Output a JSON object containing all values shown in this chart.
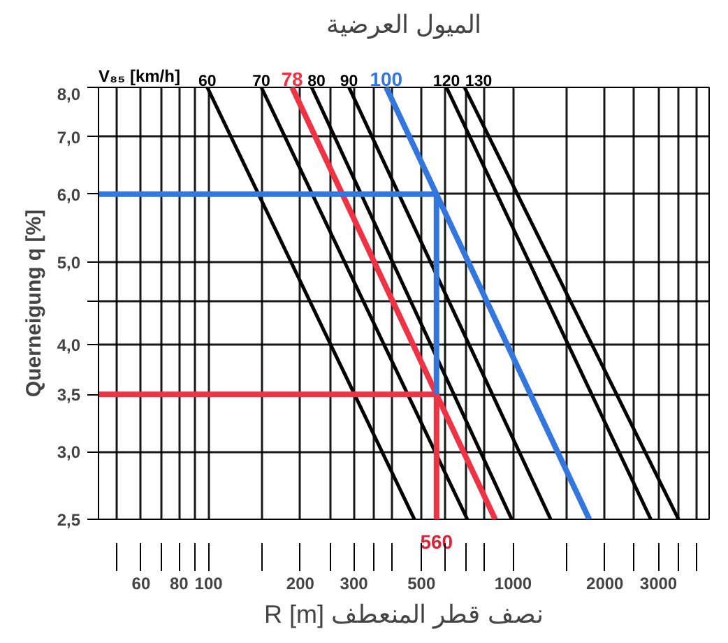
{
  "chart_data": {
    "type": "line",
    "title": "الميول العرضية",
    "xlabel": "R [m] نصف قطر المنعطف",
    "ylabel": "Querneigung q [%]",
    "annotations": [
      "V₈₅ [km/h]",
      {
        "text": "560",
        "x": 560,
        "y": 2.5
      }
    ],
    "log": "xy",
    "grid": true,
    "line_style": "solid",
    "marker": "none",
    "xlim": [
      43.5,
      4400
    ],
    "ylim": [
      2.5,
      8.0
    ],
    "xticks": [
      {
        "value": 50,
        "label": null
      },
      {
        "value": 60,
        "label": "60"
      },
      {
        "value": 70,
        "label": null
      },
      {
        "value": 80,
        "label": "80"
      },
      {
        "value": 90,
        "label": null
      },
      {
        "value": 100,
        "label": "100"
      },
      {
        "value": 150,
        "label": null
      },
      {
        "value": 200,
        "label": "200"
      },
      {
        "value": 250,
        "label": null
      },
      {
        "value": 300,
        "label": "300"
      },
      {
        "value": 350,
        "label": null
      },
      {
        "value": 400,
        "label": null
      },
      {
        "value": 500,
        "label": "500"
      },
      {
        "value": 600,
        "label": null
      },
      {
        "value": 700,
        "label": null
      },
      {
        "value": 800,
        "label": null
      },
      {
        "value": 1000,
        "label": "1000"
      },
      {
        "value": 1500,
        "label": null
      },
      {
        "value": 2000,
        "label": "2000"
      },
      {
        "value": 2500,
        "label": null
      },
      {
        "value": 3000,
        "label": "3000"
      },
      {
        "value": 3500,
        "label": null
      },
      {
        "value": 4000,
        "label": null
      }
    ],
    "yticks": [
      {
        "value": 2.5,
        "label": "2,5"
      },
      {
        "value": 3.0,
        "label": "3,0"
      },
      {
        "value": 3.5,
        "label": "3,5"
      },
      {
        "value": 4.0,
        "label": "4,0"
      },
      {
        "value": 4.5,
        "label": null
      },
      {
        "value": 5.0,
        "label": "5,0"
      },
      {
        "value": 6.0,
        "label": "6,0"
      },
      {
        "value": 7.0,
        "label": "7,0"
      },
      {
        "value": 8.0,
        "label": "8,0"
      }
    ],
    "series": [
      {
        "name": "60",
        "color": "#000000",
        "x": [
          99,
          474
        ],
        "values": [
          8.0,
          2.5
        ]
      },
      {
        "name": "70",
        "color": "#000000",
        "x": [
          149,
          707
        ],
        "values": [
          8.0,
          2.5
        ]
      },
      {
        "name": "78",
        "color": "#ee3344",
        "x": [
          188,
          873
        ],
        "values": [
          8.0,
          2.5
        ]
      },
      {
        "name": "80",
        "color": "#000000",
        "x": [
          218,
          989
        ],
        "values": [
          8.0,
          2.5
        ]
      },
      {
        "name": "90",
        "color": "#000000",
        "x": [
          289,
          1328
        ],
        "values": [
          8.0,
          2.5
        ]
      },
      {
        "name": "100",
        "color": "#3377dd",
        "x": [
          383,
          1778
        ],
        "values": [
          8.0,
          2.5
        ]
      },
      {
        "name": "120",
        "color": "#000000",
        "x": [
          604,
          2831
        ],
        "values": [
          8.0,
          2.5
        ]
      },
      {
        "name": "130",
        "color": "#000000",
        "x": [
          692,
          3491
        ],
        "values": [
          8.0,
          2.5
        ]
      },
      {
        "color": "#ee3344",
        "x": [
          43.5,
          560,
          560
        ],
        "values": [
          3.5,
          3.5,
          2.5
        ]
      },
      {
        "color": "#3377dd",
        "x": [
          560,
          560,
          43.5
        ],
        "values": [
          3.5,
          6.0,
          6.0
        ]
      }
    ]
  }
}
